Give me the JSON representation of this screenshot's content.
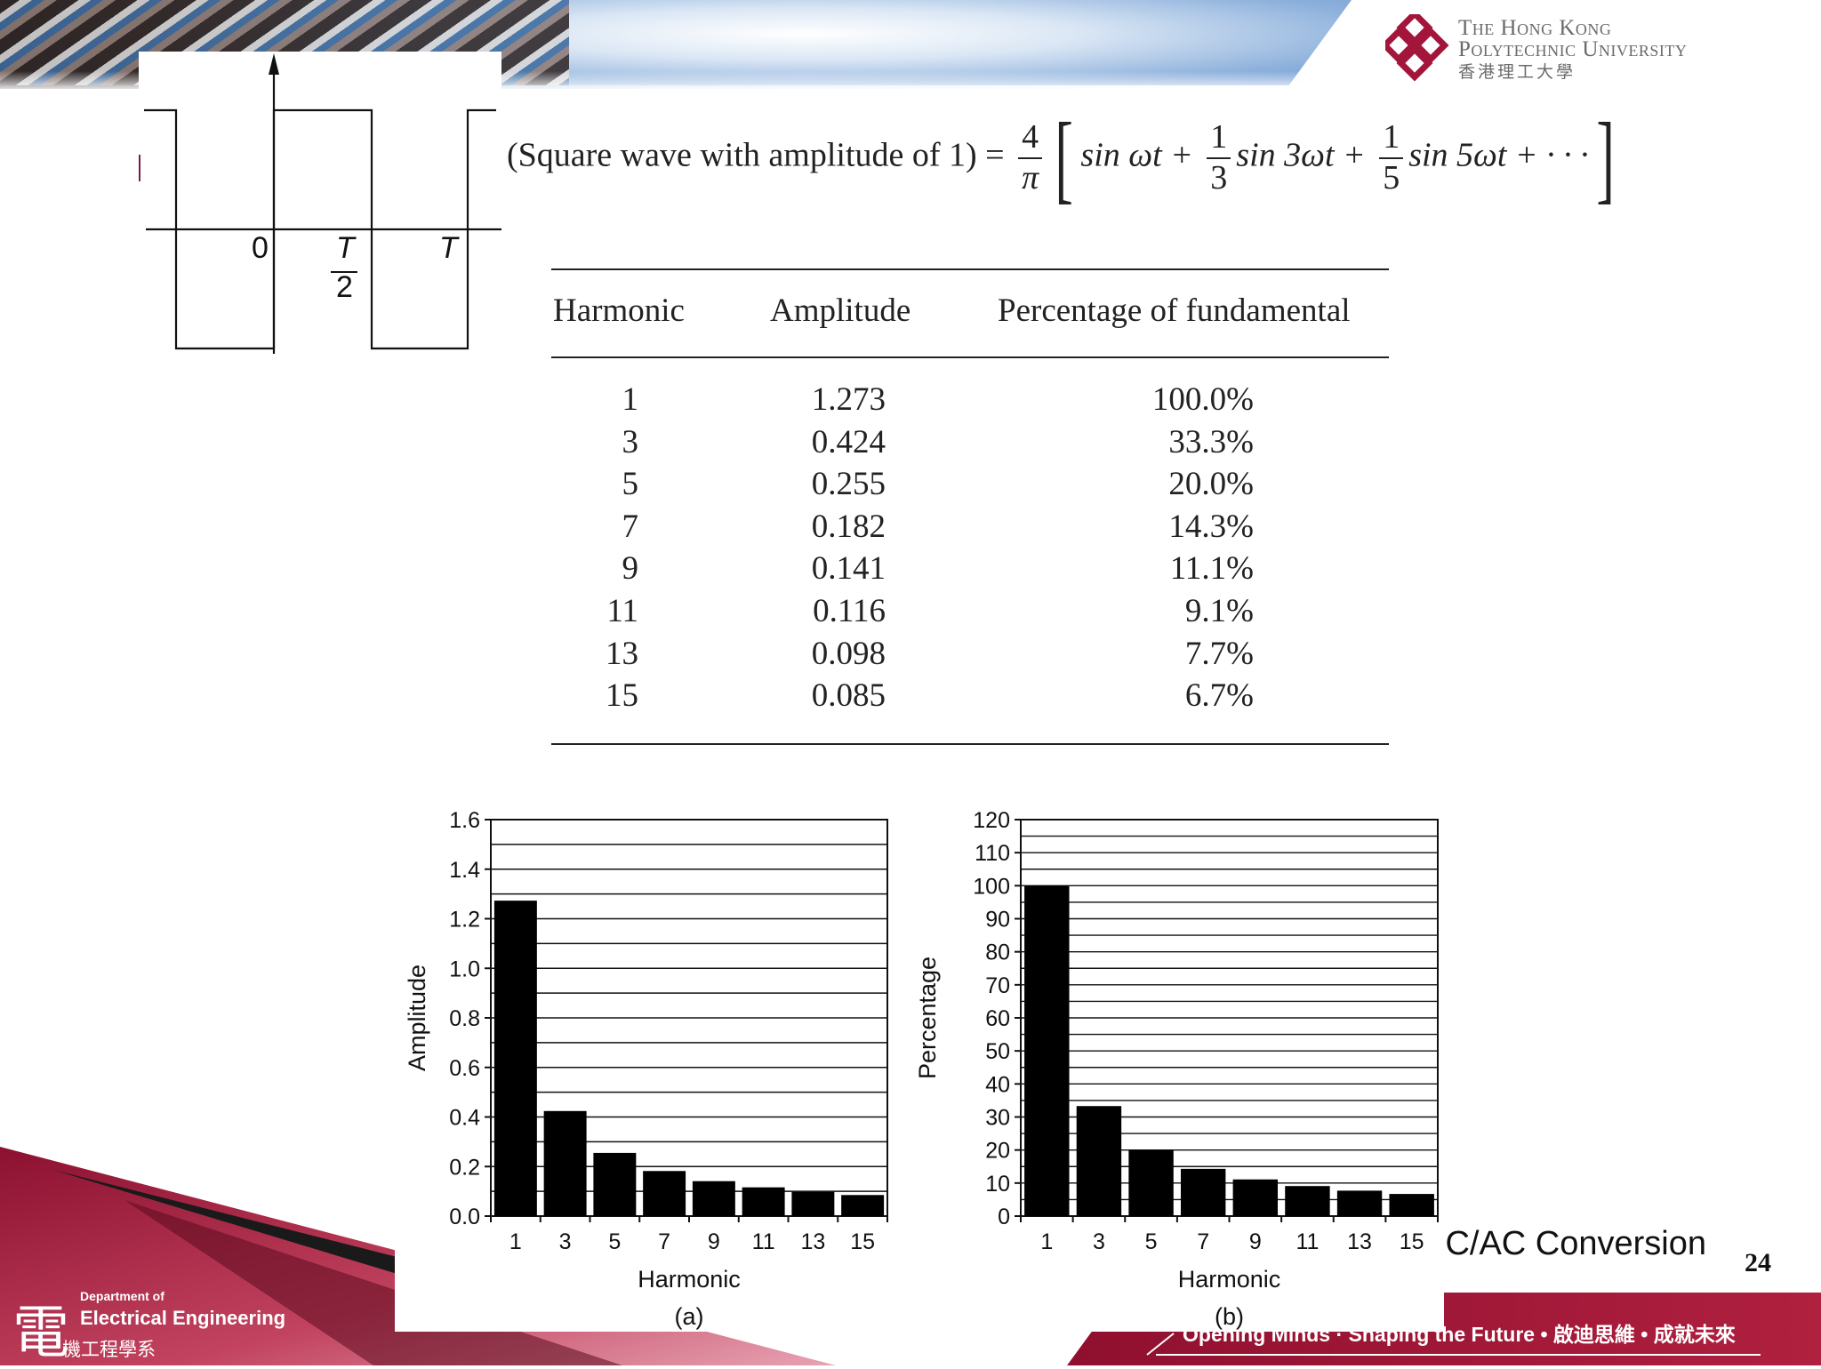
{
  "header": {
    "university_line1": "The Hong Kong",
    "university_line2": "Polytechnic University",
    "university_line3": "香港理工大學"
  },
  "waveform": {
    "label_zero": "0",
    "label_half_num": "T",
    "label_half_den": "2",
    "label_period": "T"
  },
  "equation": {
    "lhs": "(Square wave with amplitude of 1) =",
    "coef_num": "4",
    "coef_den": "π",
    "term1": "sin ωt +",
    "f1_num": "1",
    "f1_den": "3",
    "term2": "sin 3ωt +",
    "f2_num": "1",
    "f2_den": "5",
    "term3": "sin 5ωt + · · ·"
  },
  "table": {
    "headers": [
      "Harmonic",
      "Amplitude",
      "Percentage of fundamental"
    ],
    "rows": [
      [
        "1",
        "1.273",
        "100.0%"
      ],
      [
        "3",
        "0.424",
        "33.3%"
      ],
      [
        "5",
        "0.255",
        "20.0%"
      ],
      [
        "7",
        "0.182",
        "14.3%"
      ],
      [
        "9",
        "0.141",
        "11.1%"
      ],
      [
        "11",
        "0.116",
        "9.1%"
      ],
      [
        "13",
        "0.098",
        "7.7%"
      ],
      [
        "15",
        "0.085",
        "6.7%"
      ]
    ]
  },
  "chart_data": [
    {
      "type": "bar",
      "categories": [
        "1",
        "3",
        "5",
        "7",
        "9",
        "11",
        "13",
        "15"
      ],
      "values": [
        1.273,
        0.424,
        0.255,
        0.182,
        0.141,
        0.116,
        0.098,
        0.085
      ],
      "xlabel": "Harmonic",
      "ylabel": "Amplitude",
      "caption": "(a)",
      "ylim": [
        0,
        1.6
      ],
      "yticks": [
        "0.0",
        "0.2",
        "0.4",
        "0.6",
        "0.8",
        "1.0",
        "1.2",
        "1.4",
        "1.6"
      ],
      "minor_step": 0.1,
      "grid": true,
      "bar_color": "#000000"
    },
    {
      "type": "bar",
      "categories": [
        "1",
        "3",
        "5",
        "7",
        "9",
        "11",
        "13",
        "15"
      ],
      "values": [
        100.0,
        33.3,
        20.0,
        14.3,
        11.1,
        9.1,
        7.7,
        6.7
      ],
      "xlabel": "Harmonic",
      "ylabel": "Percentage",
      "caption": "(b)",
      "ylim": [
        0,
        120
      ],
      "yticks": [
        "0",
        "10",
        "20",
        "30",
        "40",
        "50",
        "60",
        "70",
        "80",
        "90",
        "100",
        "110",
        "120"
      ],
      "minor_step": 5,
      "grid": true,
      "bar_color": "#000000"
    }
  ],
  "footer": {
    "course_title": "DC/AC Conversion",
    "page_number": "24",
    "dept_line1": "Department of",
    "dept_line2": "Electrical Engineering",
    "dept_char": "電",
    "dept_line3": "機工程學系",
    "slogan": "Opening Minds · Shaping the Future • 啟迪思維 • 成就未來",
    "accent_color": "#a3153b"
  }
}
